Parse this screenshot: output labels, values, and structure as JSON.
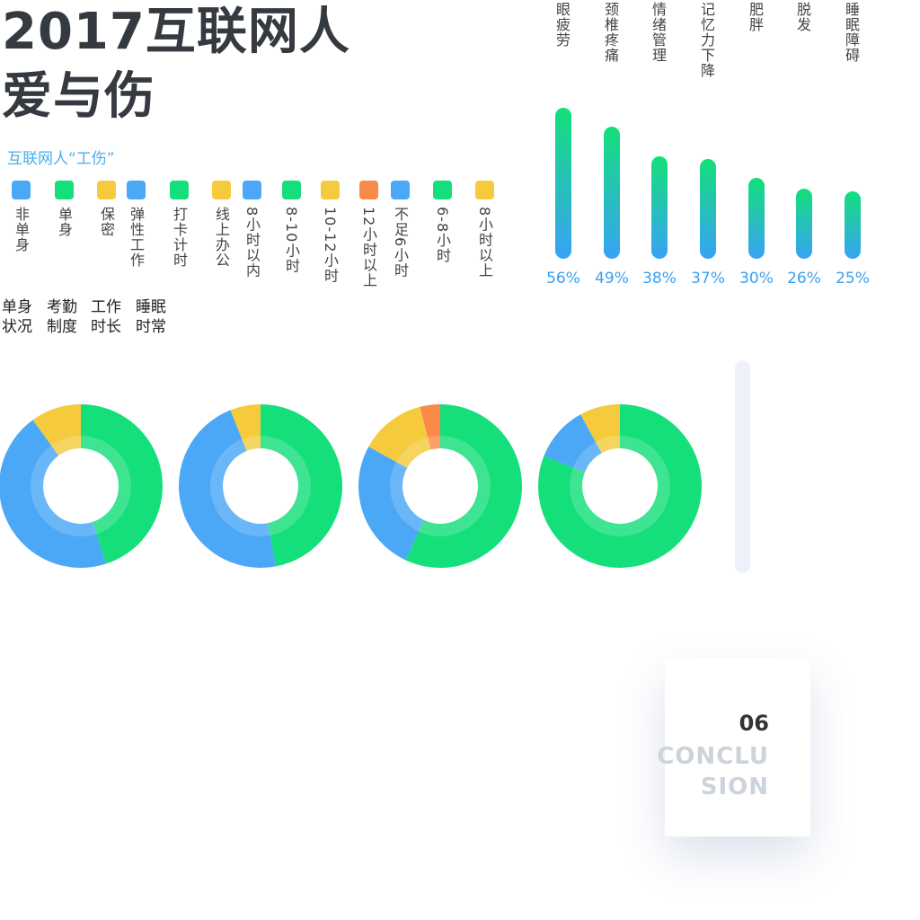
{
  "title_line1": "2017互联网人",
  "title_line2": "爱与伤",
  "subtitle": "互联网人“工伤”",
  "legend": [
    {
      "label": "非单身",
      "color": "#4aa8f7"
    },
    {
      "label": "单身",
      "color": "#14df7a"
    },
    {
      "label": "保密",
      "color": "#f5cb3d"
    },
    {
      "label": "弹性工作",
      "color": "#4aa8f7"
    },
    {
      "label": "打卡计时",
      "color": "#14df7a"
    },
    {
      "label": "线上办公",
      "color": "#f5cb3d"
    },
    {
      "label": "8小时以内",
      "color": "#4aa8f7"
    },
    {
      "label": "8-10小时",
      "color": "#14df7a"
    },
    {
      "label": "10-12小时",
      "color": "#f5cb3d"
    },
    {
      "label": "12小时以上",
      "color": "#fa8a4a"
    },
    {
      "label": "不足6小时",
      "color": "#4aa8f7"
    },
    {
      "label": "6-8小时",
      "color": "#14df7a"
    },
    {
      "label": "8小时以上",
      "color": "#f5cb3d"
    }
  ],
  "categories": [
    {
      "line1": "单身",
      "line2": "状况"
    },
    {
      "line1": "考勤",
      "line2": "制度"
    },
    {
      "line1": "工作",
      "line2": "时长"
    },
    {
      "line1": "睡眠",
      "line2": "时常"
    }
  ],
  "chart_data": [
    {
      "type": "bar",
      "categories": [
        "眼疲劳",
        "颈椎疼痛",
        "情绪管理",
        "记忆力下降",
        "肥胖",
        "脱发",
        "睡眠障碍"
      ],
      "values": [
        56,
        49,
        38,
        37,
        30,
        26,
        25
      ],
      "value_labels": [
        "56%",
        "49%",
        "38%",
        "37%",
        "30%",
        "26%",
        "25%"
      ],
      "unit": "%",
      "ylim": [
        0,
        60
      ],
      "grid": false,
      "colors": {
        "top": "#14df7a",
        "bottom": "#38a3f5"
      }
    },
    {
      "type": "pie",
      "categories": [
        "单身",
        "非单身",
        "保密"
      ],
      "values": [
        45,
        45,
        10
      ],
      "colors": [
        "#14df7a",
        "#4aa8f7",
        "#f5cb3d"
      ]
    },
    {
      "type": "pie",
      "categories": [
        "打卡计时",
        "弹性工作",
        "线上办公"
      ],
      "values": [
        47,
        47,
        6
      ],
      "colors": [
        "#14df7a",
        "#4aa8f7",
        "#f5cb3d"
      ]
    },
    {
      "type": "pie",
      "categories": [
        "8-10小时",
        "8小时以内",
        "10-12小时",
        "12小时以上"
      ],
      "values": [
        57,
        26,
        13,
        4
      ],
      "colors": [
        "#14df7a",
        "#4aa8f7",
        "#f5cb3d",
        "#fa8a4a"
      ]
    },
    {
      "type": "pie",
      "categories": [
        "6-8小时",
        "不足6小时",
        "8小时以上"
      ],
      "values": [
        81,
        11,
        8
      ],
      "colors": [
        "#14df7a",
        "#4aa8f7",
        "#f5cb3d"
      ]
    }
  ],
  "card": {
    "number": "06",
    "text_line1": "CONCLU",
    "text_line2": "SION"
  }
}
